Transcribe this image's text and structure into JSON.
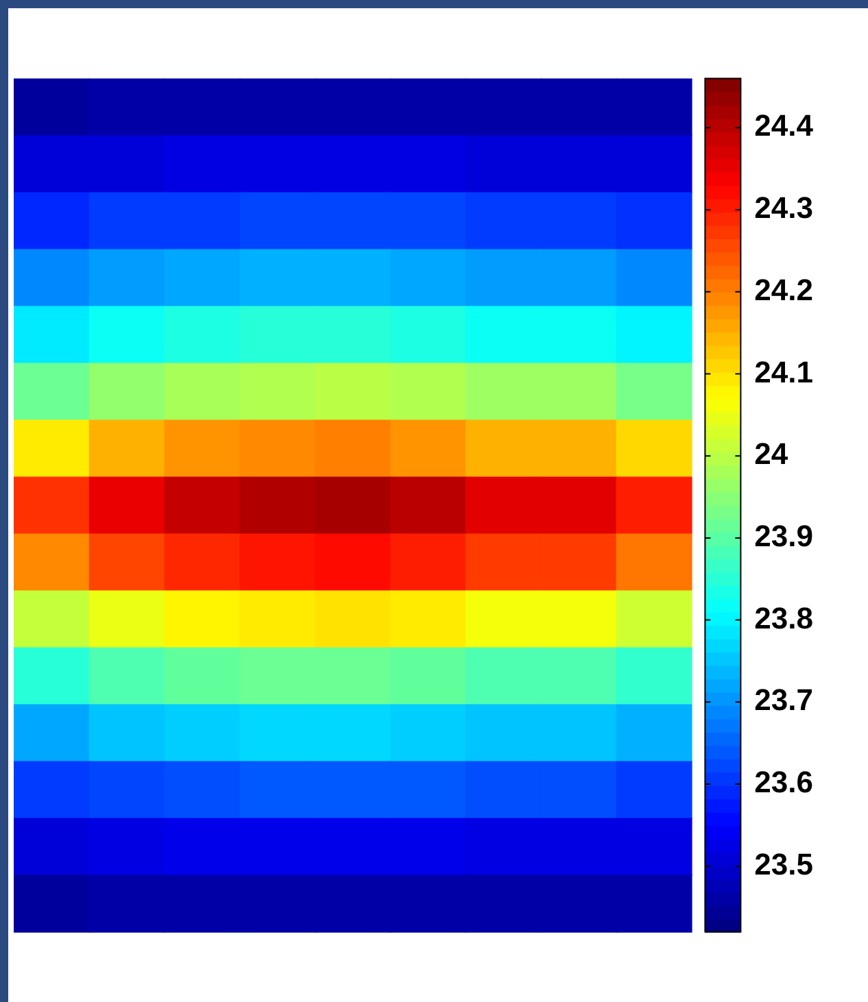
{
  "chart_data": {
    "type": "heatmap",
    "categories": [
      null,
      null,
      null,
      null,
      null,
      null,
      null,
      null,
      null
    ],
    "y_categories": [
      null,
      null,
      null,
      null,
      null,
      null,
      null,
      null,
      null,
      null,
      null,
      null,
      null,
      null,
      null
    ],
    "cells": [
      [
        23.45,
        23.46,
        23.46,
        23.46,
        23.46,
        23.46,
        23.46,
        23.46,
        23.46
      ],
      [
        23.51,
        23.51,
        23.52,
        23.52,
        23.52,
        23.52,
        23.51,
        23.51,
        23.51
      ],
      [
        23.59,
        23.61,
        23.61,
        23.62,
        23.62,
        23.62,
        23.61,
        23.61,
        23.6
      ],
      [
        23.69,
        23.71,
        23.72,
        23.73,
        23.73,
        23.72,
        23.71,
        23.71,
        23.69
      ],
      [
        23.79,
        23.82,
        23.84,
        23.85,
        23.85,
        23.84,
        23.82,
        23.82,
        23.8
      ],
      [
        23.92,
        23.96,
        23.98,
        23.99,
        24.0,
        23.99,
        23.97,
        23.97,
        23.93
      ],
      [
        24.09,
        24.15,
        24.18,
        24.19,
        24.2,
        24.18,
        24.15,
        24.15,
        24.11
      ],
      [
        24.28,
        24.35,
        24.39,
        24.41,
        24.42,
        24.4,
        24.36,
        24.36,
        24.3
      ],
      [
        24.19,
        24.26,
        24.29,
        24.31,
        24.32,
        24.3,
        24.27,
        24.27,
        24.21
      ],
      [
        24.01,
        24.05,
        24.08,
        24.09,
        24.1,
        24.09,
        24.06,
        24.06,
        24.02
      ],
      [
        23.85,
        23.89,
        23.91,
        23.92,
        23.92,
        23.91,
        23.89,
        23.89,
        23.86
      ],
      [
        23.72,
        23.75,
        23.76,
        23.77,
        23.77,
        23.76,
        23.75,
        23.75,
        23.73
      ],
      [
        23.61,
        23.62,
        23.63,
        23.64,
        23.64,
        23.64,
        23.63,
        23.63,
        23.61
      ],
      [
        23.51,
        23.52,
        23.53,
        23.53,
        23.53,
        23.53,
        23.52,
        23.52,
        23.52
      ],
      [
        23.45,
        23.46,
        23.46,
        23.46,
        23.46,
        23.46,
        23.46,
        23.46,
        23.46
      ]
    ],
    "clim": [
      23.42,
      24.46
    ],
    "cticks": [
      23.5,
      23.6,
      23.7,
      23.8,
      23.9,
      24,
      24.1,
      24.2,
      24.3,
      24.4
    ],
    "tick_labels": false
  }
}
